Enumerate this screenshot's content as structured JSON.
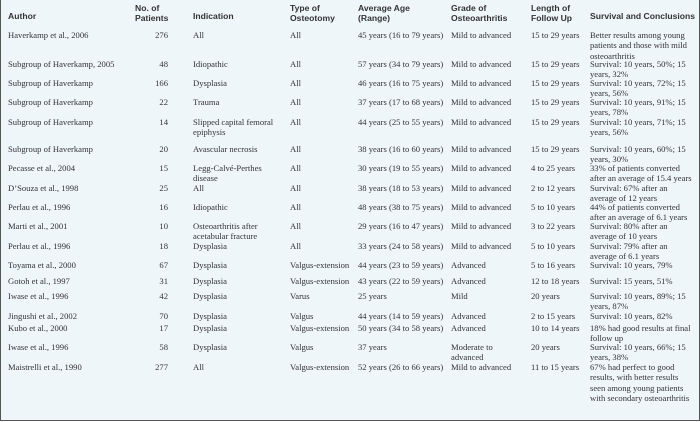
{
  "table": {
    "headers": {
      "author": "Author",
      "patients": "No. of Patients",
      "indication": "Indication",
      "osteotomy": "Type of Osteotomy",
      "age": "Average Age (Range)",
      "grade": "Grade of Osteoarthritis",
      "followup": "Length of Follow Up",
      "survival": "Survival and Conclusions"
    },
    "rows": [
      {
        "author": "Haverkamp et al., 2006",
        "patients": "276",
        "indication": "All",
        "osteotomy": "All",
        "age": "45 years (16 to 79 years)",
        "grade": "Mild to advanced",
        "followup": "15 to 29 years",
        "survival": "Better results among young patients and those with mild osteoarthritis"
      },
      {
        "author": "Subgroup of Haverkamp, 2005",
        "patients": "48",
        "indication": "Idiopathic",
        "osteotomy": "All",
        "age": "57 years (34 to 79 years)",
        "grade": "Mild to advanced",
        "followup": "15 to 29 years",
        "survival": "Survival: 10 years, 50%; 15 years, 32%"
      },
      {
        "author": "Subgroup of Haverkamp",
        "patients": "166",
        "indication": "Dysplasia",
        "osteotomy": "All",
        "age": "46 years (16 to 75 years)",
        "grade": "Mild to advanced",
        "followup": "15 to 29 years",
        "survival": "Survival: 10 years, 72%; 15 years, 56%"
      },
      {
        "author": "Subgroup of Haverkamp",
        "patients": "22",
        "indication": "Trauma",
        "osteotomy": "All",
        "age": "37 years (17 to 68 years)",
        "grade": "Mild to advanced",
        "followup": "15 to 29 years",
        "survival": "Survival: 10 years, 91%; 15 years, 78%"
      },
      {
        "author": "Subgroup of Haverkamp",
        "patients": "14",
        "indication": "Slipped capital femoral epiphysis",
        "osteotomy": "All",
        "age": "44 years (25 to 55 years)",
        "grade": "Mild to advanced",
        "followup": "15 to 29 years",
        "survival": "Survival: 10 years, 71%; 15 years, 56%"
      },
      {
        "author": "Subgroup of Haverkamp",
        "patients": "20",
        "indication": "Avascular necrosis",
        "osteotomy": "All",
        "age": "38 years (16 to 60 years)",
        "grade": "Mild to advanced",
        "followup": "15 to 29 years",
        "survival": "Survival: 10 years, 60%; 15 years, 30%"
      },
      {
        "author": "Pecasse et al., 2004",
        "patients": "15",
        "indication": "Legg-Calvé-Perthes disease",
        "osteotomy": "All",
        "age": "30 years (19 to 55 years)",
        "grade": "Mild to advanced",
        "followup": "4 to 25 years",
        "survival": "33% of patients converted after an average of 15.4 years"
      },
      {
        "author": "D’Souza et al., 1998",
        "patients": "25",
        "indication": "All",
        "osteotomy": "All",
        "age": "38 years (18 to 53 years)",
        "grade": "Mild to advanced",
        "followup": "2 to 12 years",
        "survival": "Survival: 67% after an average of 12 years"
      },
      {
        "author": "Perlau et al., 1996",
        "patients": "16",
        "indication": "Idiopathic",
        "osteotomy": "All",
        "age": "48 years (38 to 75 years)",
        "grade": "Mild to advanced",
        "followup": "5 to 10 years",
        "survival": "44% of patients converted after an average of 6.1 years"
      },
      {
        "author": "Marti et al., 2001",
        "patients": "10",
        "indication": "Osteoarthritis after acetabular fracture",
        "osteotomy": "All",
        "age": "29 years (16 to 47 years)",
        "grade": "Mild to advanced",
        "followup": "3 to 22 years",
        "survival": "Survival: 80% after an average of 10 years"
      },
      {
        "author": "Perlau et al., 1996",
        "patients": "18",
        "indication": "Dysplasia",
        "osteotomy": "All",
        "age": "33 years (24 to 58 years)",
        "grade": "Mild to advanced",
        "followup": "5 to 10 years",
        "survival": "Survival: 79% after an average of 6.1 years"
      },
      {
        "author": "Toyama et al., 2000",
        "patients": "67",
        "indication": "Dysplasia",
        "osteotomy": "Valgus-extension",
        "age": "44 years (23 to 59 years)",
        "grade": "Advanced",
        "followup": "5 to 16 years",
        "survival": "Survival: 10 years, 79%"
      },
      {
        "author": "Gotoh et al., 1997",
        "patients": "31",
        "indication": "Dysplasia",
        "osteotomy": "Valgus-extension",
        "age": "43 years (22 to 59 years)",
        "grade": "Advanced",
        "followup": "12 to 18 years",
        "survival": "Survival: 15 years, 51%"
      },
      {
        "author": "Iwase et al., 1996",
        "patients": "42",
        "indication": "Dysplasia",
        "osteotomy": "Varus",
        "age": "25 years",
        "grade": "Mild",
        "followup": "20 years",
        "survival": "Survival: 10 years, 89%; 15 years, 87%"
      },
      {
        "author": "Jingushi et al., 2002",
        "patients": "70",
        "indication": "Dysplasia",
        "osteotomy": "Valgus",
        "age": "44 years (14 to 59 years)",
        "grade": "Advanced",
        "followup": "2 to 15 years",
        "survival": "Survival: 10 years, 82%"
      },
      {
        "author": "Kubo et al., 2000",
        "patients": "17",
        "indication": "Dysplasia",
        "osteotomy": "Valgus-extension",
        "age": "50 years (34 to 58 years)",
        "grade": "Advanced",
        "followup": "10 to 14 years",
        "survival": "18% had good results at final follow up"
      },
      {
        "author": "Iwase et al., 1996",
        "patients": "58",
        "indication": "Dysplasia",
        "osteotomy": "Valgus",
        "age": "37 years",
        "grade": "Moderate to advanced",
        "followup": "20 years",
        "survival": "Survival: 10 years, 66%; 15 years, 38%"
      },
      {
        "author": "Maistrelli et al., 1990",
        "patients": "277",
        "indication": "All",
        "osteotomy": "Valgus-extension",
        "age": "52 years (26 to 66 years)",
        "grade": "Mild to advanced",
        "followup": "11 to 15 years",
        "survival": "67% had perfect to good results, with better results seen among young patients with secondary osteoarthritis"
      }
    ]
  }
}
